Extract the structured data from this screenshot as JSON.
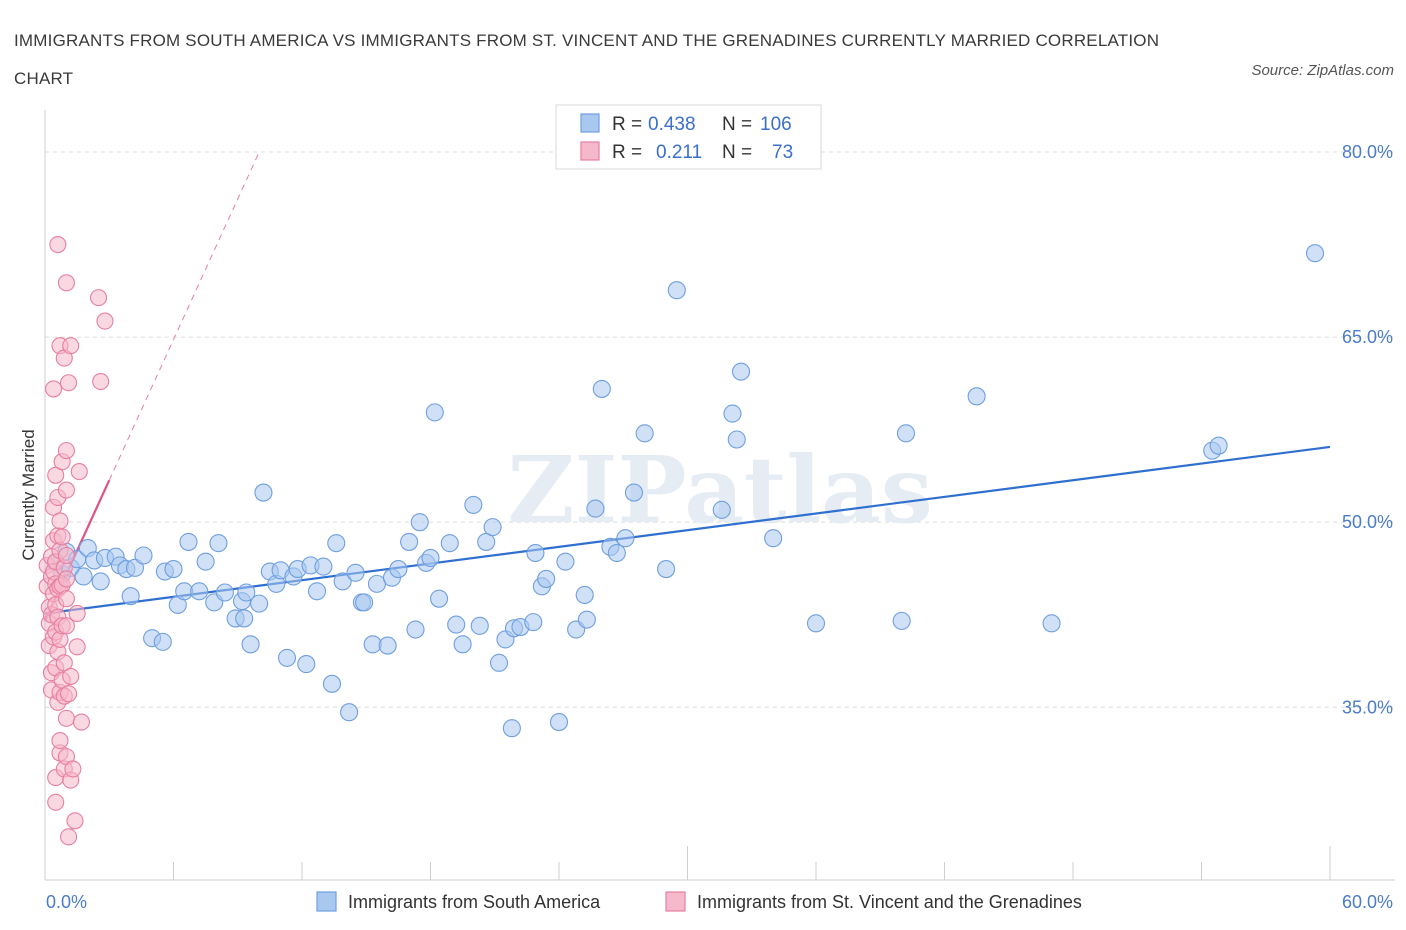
{
  "title": "IMMIGRANTS FROM SOUTH AMERICA VS IMMIGRANTS FROM ST. VINCENT AND THE GRENADINES CURRENTLY MARRIED CORRELATION CHART",
  "source": "Source: ZipAtlas.com",
  "watermark": "ZIPatlas",
  "colors": {
    "blue_fill": "#a9c8f0",
    "blue_stroke": "#6f9fe0",
    "blue_line": "#2f6fd0",
    "pink_fill": "#f6b8cb",
    "pink_stroke": "#e77fa0",
    "pink_line": "#e0527f",
    "tick_text": "#4a7cc7",
    "grid": "#dcdcdc"
  },
  "legend": {
    "rows": [
      {
        "r_label": "R =",
        "r_value": "0.438",
        "n_label": "N =",
        "n_value": "106"
      },
      {
        "r_label": "R =",
        "r_value": "0.211",
        "n_label": "N =",
        "n_value": "73"
      }
    ]
  },
  "chart_data": {
    "type": "scatter",
    "title": "IMMIGRANTS FROM SOUTH AMERICA VS IMMIGRANTS FROM ST. VINCENT AND THE GRENADINES CURRENTLY MARRIED CORRELATION CHART",
    "xlabel": "",
    "ylabel": "Currently Married",
    "xlim": [
      0,
      60
    ],
    "ylim": [
      21,
      83
    ],
    "x_tick_labels": [
      "0.0%",
      "60.0%"
    ],
    "y_ticks": [
      35,
      50,
      65,
      80
    ],
    "y_tick_labels": [
      "35.0%",
      "50.0%",
      "65.0%",
      "80.0%"
    ],
    "grid": true,
    "legend_position": "top-center",
    "series": [
      {
        "name": "Immigrants from South America",
        "color": "#a9c8f0",
        "R": 0.438,
        "N": 106,
        "trend": {
          "x": [
            0,
            60
          ],
          "y": [
            42.6,
            56.1
          ],
          "style": "solid"
        },
        "points": [
          [
            0.5,
            46.7
          ],
          [
            0.8,
            45.8
          ],
          [
            1.0,
            47.6
          ],
          [
            1.2,
            46.3
          ],
          [
            1.5,
            47.0
          ],
          [
            1.8,
            45.6
          ],
          [
            2.0,
            47.9
          ],
          [
            2.3,
            46.9
          ],
          [
            2.6,
            45.2
          ],
          [
            2.8,
            47.1
          ],
          [
            3.3,
            47.2
          ],
          [
            3.5,
            46.5
          ],
          [
            3.8,
            46.2
          ],
          [
            4.0,
            44.0
          ],
          [
            4.2,
            46.3
          ],
          [
            4.6,
            47.3
          ],
          [
            5.0,
            40.6
          ],
          [
            5.5,
            40.3
          ],
          [
            5.6,
            46.0
          ],
          [
            6.0,
            46.2
          ],
          [
            6.2,
            43.3
          ],
          [
            6.5,
            44.4
          ],
          [
            6.7,
            48.4
          ],
          [
            7.2,
            44.4
          ],
          [
            7.5,
            46.8
          ],
          [
            7.9,
            43.5
          ],
          [
            8.1,
            48.3
          ],
          [
            8.4,
            44.3
          ],
          [
            8.9,
            42.2
          ],
          [
            9.2,
            43.6
          ],
          [
            9.4,
            44.3
          ],
          [
            9.3,
            42.2
          ],
          [
            9.6,
            40.1
          ],
          [
            10.0,
            43.4
          ],
          [
            10.2,
            52.4
          ],
          [
            10.5,
            46.0
          ],
          [
            10.8,
            45.0
          ],
          [
            11.0,
            46.1
          ],
          [
            11.3,
            39.0
          ],
          [
            11.6,
            45.6
          ],
          [
            11.8,
            46.2
          ],
          [
            12.2,
            38.5
          ],
          [
            12.4,
            46.5
          ],
          [
            12.7,
            44.4
          ],
          [
            13.0,
            46.4
          ],
          [
            13.4,
            36.9
          ],
          [
            13.6,
            48.3
          ],
          [
            13.9,
            45.2
          ],
          [
            14.2,
            34.6
          ],
          [
            14.5,
            45.9
          ],
          [
            14.8,
            43.5
          ],
          [
            14.9,
            43.5
          ],
          [
            15.3,
            40.1
          ],
          [
            15.5,
            45.0
          ],
          [
            16.0,
            40.0
          ],
          [
            16.2,
            45.5
          ],
          [
            16.5,
            46.2
          ],
          [
            17.0,
            48.4
          ],
          [
            17.3,
            41.3
          ],
          [
            17.5,
            50.0
          ],
          [
            17.8,
            46.7
          ],
          [
            18.0,
            47.1
          ],
          [
            18.2,
            58.9
          ],
          [
            18.4,
            43.8
          ],
          [
            18.9,
            48.3
          ],
          [
            19.2,
            41.7
          ],
          [
            19.5,
            40.1
          ],
          [
            20.0,
            51.4
          ],
          [
            20.3,
            41.6
          ],
          [
            20.6,
            48.4
          ],
          [
            20.9,
            49.6
          ],
          [
            21.2,
            38.6
          ],
          [
            21.5,
            40.5
          ],
          [
            21.8,
            33.3
          ],
          [
            21.9,
            41.4
          ],
          [
            22.2,
            41.5
          ],
          [
            22.8,
            41.9
          ],
          [
            22.9,
            47.5
          ],
          [
            23.2,
            44.8
          ],
          [
            23.4,
            45.4
          ],
          [
            24.0,
            33.8
          ],
          [
            24.3,
            46.8
          ],
          [
            24.8,
            41.3
          ],
          [
            25.2,
            44.1
          ],
          [
            25.3,
            42.1
          ],
          [
            25.7,
            51.1
          ],
          [
            26.0,
            60.8
          ],
          [
            26.4,
            48.0
          ],
          [
            26.7,
            47.5
          ],
          [
            27.1,
            48.7
          ],
          [
            27.5,
            52.4
          ],
          [
            28.0,
            57.2
          ],
          [
            29.0,
            46.2
          ],
          [
            29.5,
            68.8
          ],
          [
            31.6,
            51.0
          ],
          [
            32.1,
            58.8
          ],
          [
            32.3,
            56.7
          ],
          [
            32.5,
            62.2
          ],
          [
            34.0,
            48.7
          ],
          [
            36.0,
            41.8
          ],
          [
            40.0,
            42.0
          ],
          [
            40.2,
            57.2
          ],
          [
            43.5,
            60.2
          ],
          [
            47.0,
            41.8
          ],
          [
            54.5,
            55.8
          ],
          [
            54.8,
            56.2
          ],
          [
            59.3,
            71.8
          ]
        ]
      },
      {
        "name": "Immigrants from St. Vincent and the Grenadines",
        "color": "#f6b8cb",
        "R": 0.211,
        "N": 73,
        "trend": {
          "x": [
            0,
            3
          ],
          "y": [
            42.0,
            53.4
          ],
          "style": "solid",
          "dashed_extension": {
            "x": [
              3,
              10
            ],
            "y": [
              53.4,
              80
            ]
          }
        },
        "points": [
          [
            0.1,
            46.5
          ],
          [
            0.1,
            44.8
          ],
          [
            0.2,
            43.1
          ],
          [
            0.2,
            41.8
          ],
          [
            0.2,
            40.0
          ],
          [
            0.3,
            45.6
          ],
          [
            0.3,
            47.2
          ],
          [
            0.3,
            36.4
          ],
          [
            0.3,
            37.8
          ],
          [
            0.3,
            42.5
          ],
          [
            0.4,
            40.7
          ],
          [
            0.4,
            44.2
          ],
          [
            0.4,
            46.0
          ],
          [
            0.4,
            48.5
          ],
          [
            0.4,
            51.2
          ],
          [
            0.4,
            60.8
          ],
          [
            0.5,
            27.3
          ],
          [
            0.5,
            29.3
          ],
          [
            0.5,
            38.2
          ],
          [
            0.5,
            41.1
          ],
          [
            0.5,
            43.3
          ],
          [
            0.5,
            45.0
          ],
          [
            0.5,
            46.8
          ],
          [
            0.5,
            53.8
          ],
          [
            0.6,
            35.4
          ],
          [
            0.6,
            39.5
          ],
          [
            0.6,
            42.3
          ],
          [
            0.6,
            44.6
          ],
          [
            0.6,
            48.9
          ],
          [
            0.6,
            52.0
          ],
          [
            0.6,
            72.5
          ],
          [
            0.7,
            31.3
          ],
          [
            0.7,
            32.3
          ],
          [
            0.7,
            36.2
          ],
          [
            0.7,
            40.5
          ],
          [
            0.7,
            44.8
          ],
          [
            0.7,
            47.7
          ],
          [
            0.7,
            50.1
          ],
          [
            0.7,
            64.3
          ],
          [
            0.8,
            37.2
          ],
          [
            0.8,
            41.6
          ],
          [
            0.8,
            44.9
          ],
          [
            0.8,
            48.8
          ],
          [
            0.8,
            54.9
          ],
          [
            0.9,
            30.0
          ],
          [
            0.9,
            35.9
          ],
          [
            0.9,
            38.6
          ],
          [
            0.9,
            46.3
          ],
          [
            0.9,
            63.3
          ],
          [
            1.0,
            31.0
          ],
          [
            1.0,
            34.1
          ],
          [
            1.0,
            41.6
          ],
          [
            1.0,
            43.8
          ],
          [
            1.0,
            45.4
          ],
          [
            1.0,
            47.3
          ],
          [
            1.0,
            52.6
          ],
          [
            1.0,
            55.8
          ],
          [
            1.0,
            69.4
          ],
          [
            1.1,
            24.5
          ],
          [
            1.1,
            36.1
          ],
          [
            1.1,
            61.3
          ],
          [
            1.2,
            29.1
          ],
          [
            1.2,
            37.5
          ],
          [
            1.2,
            64.3
          ],
          [
            1.3,
            30.0
          ],
          [
            1.4,
            25.8
          ],
          [
            1.5,
            39.9
          ],
          [
            1.5,
            42.6
          ],
          [
            1.6,
            54.1
          ],
          [
            1.7,
            33.8
          ],
          [
            2.5,
            68.2
          ],
          [
            2.6,
            61.4
          ],
          [
            2.8,
            66.3
          ]
        ]
      }
    ]
  },
  "bottom_legend": {
    "items": [
      {
        "label": "Immigrants from South America"
      },
      {
        "label": "Immigrants from St. Vincent and the Grenadines"
      }
    ]
  }
}
